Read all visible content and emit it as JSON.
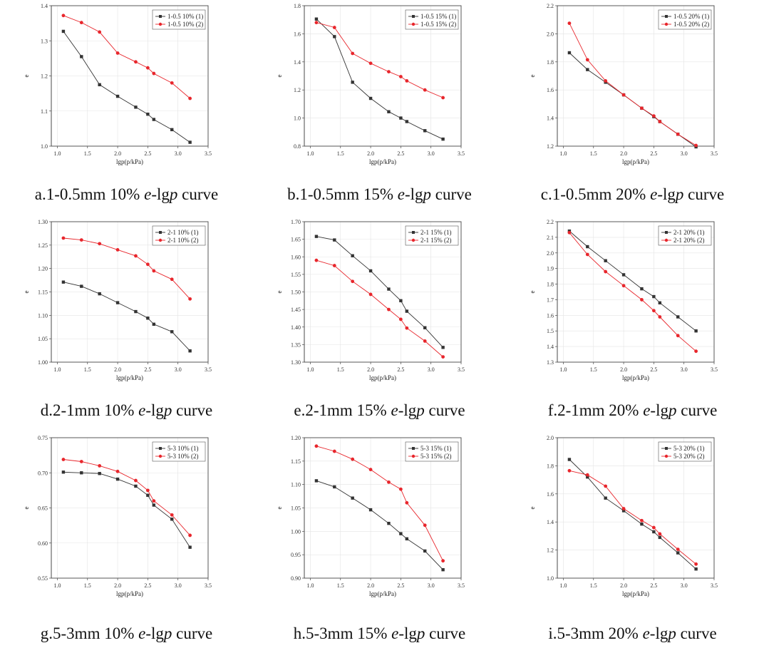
{
  "colors": {
    "series1": "#333333",
    "series2": "#e8262c"
  },
  "chart_data": [
    {
      "type": "line",
      "id": "a",
      "title": "a.1-0.5mm 10% e-lgp curve",
      "caption_prefix": "a.1-0.5mm 10% ",
      "caption_e": "e",
      "caption_mid": "-lg",
      "caption_p": "p",
      "caption_suffix": " curve",
      "xlabel": "lgp(p/kPa)",
      "ylabel": "e",
      "xlim": [
        0.9,
        3.5
      ],
      "ylim": [
        1.0,
        1.4
      ],
      "xticks": [
        "1.0",
        "1.5",
        "2.0",
        "2.5",
        "3.0",
        "3.5"
      ],
      "xtick_values": [
        1.0,
        1.5,
        2.0,
        2.5,
        3.0,
        3.5
      ],
      "yticks": [
        "1.0",
        "1.1",
        "1.2",
        "1.3",
        "1.4"
      ],
      "ytick_values": [
        1.0,
        1.1,
        1.2,
        1.3,
        1.4
      ],
      "x": [
        1.1,
        1.4,
        1.7,
        2.0,
        2.3,
        2.5,
        2.6,
        2.9,
        3.2
      ],
      "series": [
        {
          "name": "1-0.5 10% (1)",
          "values": [
            1.327,
            1.255,
            1.175,
            1.142,
            1.111,
            1.091,
            1.076,
            1.047,
            1.011
          ]
        },
        {
          "name": "1-0.5 10% (2)",
          "values": [
            1.372,
            1.352,
            1.325,
            1.265,
            1.24,
            1.223,
            1.207,
            1.18,
            1.136
          ]
        }
      ]
    },
    {
      "type": "line",
      "id": "b",
      "title": "b.1-0.5mm 15% e-lgp curve",
      "caption_prefix": "b.1-0.5mm 15% ",
      "caption_e": "e",
      "caption_mid": "-lg",
      "caption_p": "p",
      "caption_suffix": " curve",
      "xlabel": "lgp(p/kPa)",
      "ylabel": "e",
      "xlim": [
        0.9,
        3.5
      ],
      "ylim": [
        0.8,
        1.8
      ],
      "xticks": [
        "1.0",
        "1.5",
        "2.0",
        "2.5",
        "3.0",
        "3.5"
      ],
      "xtick_values": [
        1.0,
        1.5,
        2.0,
        2.5,
        3.0,
        3.5
      ],
      "yticks": [
        "0.8",
        "1.0",
        "1.2",
        "1.4",
        "1.6",
        "1.8"
      ],
      "ytick_values": [
        0.8,
        1.0,
        1.2,
        1.4,
        1.6,
        1.8
      ],
      "x": [
        1.1,
        1.4,
        1.7,
        2.0,
        2.3,
        2.5,
        2.6,
        2.9,
        3.2
      ],
      "series": [
        {
          "name": "1-0.5 15% (1)",
          "values": [
            1.705,
            1.58,
            1.255,
            1.14,
            1.045,
            1.0,
            0.975,
            0.91,
            0.85
          ]
        },
        {
          "name": "1-0.5 15% (2)",
          "values": [
            1.68,
            1.645,
            1.46,
            1.39,
            1.33,
            1.295,
            1.265,
            1.2,
            1.145
          ]
        }
      ]
    },
    {
      "type": "line",
      "id": "c",
      "title": "c.1-0.5mm 20% e-lgp curve",
      "caption_prefix": "c.1-0.5mm 20% ",
      "caption_e": "e",
      "caption_mid": "-lg",
      "caption_p": "p",
      "caption_suffix": " curve",
      "xlabel": "lgp(p/kPa)",
      "ylabel": "e",
      "xlim": [
        0.9,
        3.5
      ],
      "ylim": [
        1.2,
        2.2
      ],
      "xticks": [
        "1.0",
        "1.5",
        "2.0",
        "2.5",
        "3.0",
        "3.5"
      ],
      "xtick_values": [
        1.0,
        1.5,
        2.0,
        2.5,
        3.0,
        3.5
      ],
      "yticks": [
        "1.2",
        "1.4",
        "1.6",
        "1.8",
        "2.0",
        "2.2"
      ],
      "ytick_values": [
        1.2,
        1.4,
        1.6,
        1.8,
        2.0,
        2.2
      ],
      "x": [
        1.1,
        1.4,
        1.7,
        2.0,
        2.3,
        2.5,
        2.6,
        2.9,
        3.2
      ],
      "series": [
        {
          "name": "1-0.5 20% (1)",
          "values": [
            1.865,
            1.745,
            1.655,
            1.565,
            1.47,
            1.41,
            1.375,
            1.285,
            1.195
          ]
        },
        {
          "name": "1-0.5 20% (2)",
          "values": [
            2.075,
            1.815,
            1.665,
            1.565,
            1.47,
            1.415,
            1.375,
            1.285,
            1.205
          ]
        }
      ]
    },
    {
      "type": "line",
      "id": "d",
      "title": "d.2-1mm 10% e-lgp curve",
      "caption_prefix": "d.2-1mm 10% ",
      "caption_e": "e",
      "caption_mid": "-lg",
      "caption_p": "p",
      "caption_suffix": " curve",
      "xlabel": "lgp(p/kPa)",
      "ylabel": "e",
      "xlim": [
        0.9,
        3.5
      ],
      "ylim": [
        1.0,
        1.3
      ],
      "xticks": [
        "1.0",
        "1.5",
        "2.0",
        "2.5",
        "3.0",
        "3.5"
      ],
      "xtick_values": [
        1.0,
        1.5,
        2.0,
        2.5,
        3.0,
        3.5
      ],
      "yticks": [
        "1.00",
        "1.05",
        "1.10",
        "1.15",
        "1.20",
        "1.25",
        "1.30"
      ],
      "ytick_values": [
        1.0,
        1.05,
        1.1,
        1.15,
        1.2,
        1.25,
        1.3
      ],
      "x": [
        1.1,
        1.4,
        1.7,
        2.0,
        2.3,
        2.5,
        2.6,
        2.9,
        3.2
      ],
      "series": [
        {
          "name": "2-1 10% (1)",
          "values": [
            1.171,
            1.162,
            1.146,
            1.127,
            1.108,
            1.094,
            1.081,
            1.065,
            1.024
          ]
        },
        {
          "name": "2-1 10% (2)",
          "values": [
            1.265,
            1.261,
            1.253,
            1.24,
            1.227,
            1.209,
            1.195,
            1.177,
            1.135
          ]
        }
      ]
    },
    {
      "type": "line",
      "id": "e",
      "title": "e.2-1mm 15% e-lgp curve",
      "caption_prefix": "e.2-1mm 15% ",
      "caption_e": "e",
      "caption_mid": "-lg",
      "caption_p": "p",
      "caption_suffix": " curve",
      "xlabel": "lgp(p/kPa)",
      "ylabel": "e",
      "xlim": [
        0.9,
        3.5
      ],
      "ylim": [
        1.3,
        1.7
      ],
      "xticks": [
        "1.0",
        "1.5",
        "2.0",
        "2.5",
        "3.0",
        "3.5"
      ],
      "xtick_values": [
        1.0,
        1.5,
        2.0,
        2.5,
        3.0,
        3.5
      ],
      "yticks": [
        "1.30",
        "1.35",
        "1.40",
        "1.45",
        "1.50",
        "1.55",
        "1.60",
        "1.65",
        "1.70"
      ],
      "ytick_values": [
        1.3,
        1.35,
        1.4,
        1.45,
        1.5,
        1.55,
        1.6,
        1.65,
        1.7
      ],
      "x": [
        1.1,
        1.4,
        1.7,
        2.0,
        2.3,
        2.5,
        2.6,
        2.9,
        3.2
      ],
      "series": [
        {
          "name": "2-1 15% (1)",
          "values": [
            1.658,
            1.648,
            1.603,
            1.56,
            1.508,
            1.475,
            1.445,
            1.398,
            1.342
          ]
        },
        {
          "name": "2-1 15% (2)",
          "values": [
            1.59,
            1.575,
            1.53,
            1.493,
            1.45,
            1.422,
            1.397,
            1.36,
            1.315
          ]
        }
      ]
    },
    {
      "type": "line",
      "id": "f",
      "title": "f.2-1mm 20% e-lgp curve",
      "caption_prefix": "f.2-1mm 20% ",
      "caption_e": "e",
      "caption_mid": "-lg",
      "caption_p": "p",
      "caption_suffix": " curve",
      "xlabel": "lgp(p/kPa)",
      "ylabel": "e",
      "xlim": [
        0.9,
        3.5
      ],
      "ylim": [
        1.3,
        2.2
      ],
      "xticks": [
        "1.0",
        "1.5",
        "2.0",
        "2.5",
        "3.0",
        "3.5"
      ],
      "xtick_values": [
        1.0,
        1.5,
        2.0,
        2.5,
        3.0,
        3.5
      ],
      "yticks": [
        "1.3",
        "1.4",
        "1.5",
        "1.6",
        "1.7",
        "1.8",
        "1.9",
        "2.0",
        "2.1",
        "2.2"
      ],
      "ytick_values": [
        1.3,
        1.4,
        1.5,
        1.6,
        1.7,
        1.8,
        1.9,
        2.0,
        2.1,
        2.2
      ],
      "x": [
        1.1,
        1.4,
        1.7,
        2.0,
        2.3,
        2.5,
        2.6,
        2.9,
        3.2
      ],
      "series": [
        {
          "name": "2-1 20% (1)",
          "values": [
            2.14,
            2.04,
            1.95,
            1.86,
            1.77,
            1.72,
            1.68,
            1.59,
            1.5
          ]
        },
        {
          "name": "2-1 20% (2)",
          "values": [
            2.13,
            1.99,
            1.88,
            1.79,
            1.7,
            1.63,
            1.59,
            1.47,
            1.37
          ]
        }
      ]
    },
    {
      "type": "line",
      "id": "g",
      "title": "g.5-3mm 10% e-lgp curve",
      "caption_prefix": "g.5-3mm 10% ",
      "caption_e": "e",
      "caption_mid": "-lg",
      "caption_p": "p",
      "caption_suffix": " curve",
      "xlabel": "lgp(p/kPa)",
      "ylabel": "e",
      "xlim": [
        0.9,
        3.5
      ],
      "ylim": [
        0.55,
        0.75
      ],
      "xticks": [
        "1.0",
        "1.5",
        "2.0",
        "2.5",
        "3.0",
        "3.5"
      ],
      "xtick_values": [
        1.0,
        1.5,
        2.0,
        2.5,
        3.0,
        3.5
      ],
      "yticks": [
        "0.55",
        "0.60",
        "0.65",
        "0.70",
        "0.75"
      ],
      "ytick_values": [
        0.55,
        0.6,
        0.65,
        0.7,
        0.75
      ],
      "x": [
        1.1,
        1.4,
        1.7,
        2.0,
        2.3,
        2.5,
        2.6,
        2.9,
        3.2
      ],
      "series": [
        {
          "name": "5-3 10% (1)",
          "values": [
            0.701,
            0.7,
            0.699,
            0.691,
            0.681,
            0.668,
            0.654,
            0.634,
            0.594
          ]
        },
        {
          "name": "5-3 10% (2)",
          "values": [
            0.719,
            0.716,
            0.71,
            0.702,
            0.689,
            0.675,
            0.66,
            0.64,
            0.611
          ]
        }
      ]
    },
    {
      "type": "line",
      "id": "h",
      "title": "h.5-3mm 15% e-lgp curve",
      "caption_prefix": "h.5-3mm 15% ",
      "caption_e": "e",
      "caption_mid": "-lg",
      "caption_p": "p",
      "caption_suffix": " curve",
      "xlabel": "lgp(p/kPa)",
      "ylabel": "e",
      "xlim": [
        0.9,
        3.5
      ],
      "ylim": [
        0.9,
        1.2
      ],
      "xticks": [
        "1.0",
        "1.5",
        "2.0",
        "2.5",
        "3.0",
        "3.5"
      ],
      "xtick_values": [
        1.0,
        1.5,
        2.0,
        2.5,
        3.0,
        3.5
      ],
      "yticks": [
        "0.90",
        "0.95",
        "1.00",
        "1.05",
        "1.10",
        "1.15",
        "1.20"
      ],
      "ytick_values": [
        0.9,
        0.95,
        1.0,
        1.05,
        1.1,
        1.15,
        1.2
      ],
      "x": [
        1.1,
        1.4,
        1.7,
        2.0,
        2.3,
        2.5,
        2.6,
        2.9,
        3.2
      ],
      "series": [
        {
          "name": "5-3 15% (1)",
          "values": [
            1.108,
            1.095,
            1.071,
            1.046,
            1.017,
            0.995,
            0.984,
            0.958,
            0.918
          ]
        },
        {
          "name": "5-3 15% (2)",
          "values": [
            1.182,
            1.171,
            1.154,
            1.132,
            1.105,
            1.09,
            1.061,
            1.013,
            0.937
          ]
        }
      ]
    },
    {
      "type": "line",
      "id": "i",
      "title": "i.5-3mm 20% e-lgp curve",
      "caption_prefix": "i.5-3mm 20% ",
      "caption_e": "e",
      "caption_mid": "-lg",
      "caption_p": "p",
      "caption_suffix": " curve",
      "xlabel": "lgp(p/kPa)",
      "ylabel": "e",
      "xlim": [
        0.9,
        3.5
      ],
      "ylim": [
        1.0,
        2.0
      ],
      "xticks": [
        "1.0",
        "1.5",
        "2.0",
        "2.5",
        "3.0",
        "3.5"
      ],
      "xtick_values": [
        1.0,
        1.5,
        2.0,
        2.5,
        3.0,
        3.5
      ],
      "yticks": [
        "1.0",
        "1.2",
        "1.4",
        "1.6",
        "1.8",
        "2.0"
      ],
      "ytick_values": [
        1.0,
        1.2,
        1.4,
        1.6,
        1.8,
        2.0
      ],
      "x": [
        1.1,
        1.4,
        1.7,
        2.0,
        2.3,
        2.5,
        2.6,
        2.9,
        3.2
      ],
      "series": [
        {
          "name": "5-3 20% (1)",
          "values": [
            1.845,
            1.72,
            1.57,
            1.48,
            1.385,
            1.33,
            1.29,
            1.18,
            1.065
          ]
        },
        {
          "name": "5-3 20% (2)",
          "values": [
            1.765,
            1.735,
            1.655,
            1.495,
            1.41,
            1.36,
            1.315,
            1.205,
            1.1
          ]
        }
      ]
    }
  ]
}
